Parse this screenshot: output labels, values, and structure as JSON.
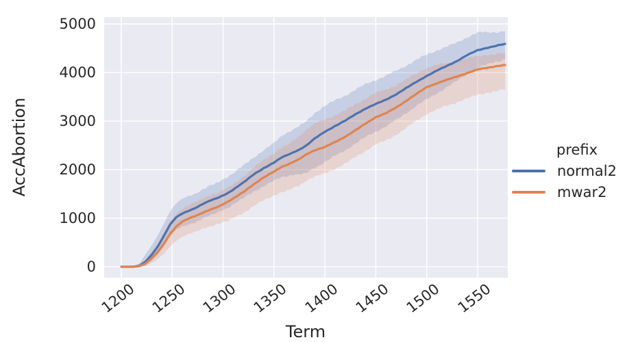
{
  "figure": {
    "background": "#ffffff",
    "text_color": "#262626"
  },
  "chart_data": {
    "type": "line",
    "title": "",
    "xlabel": "Term",
    "ylabel": "AccAbortion",
    "grid": true,
    "plot_bg": "#eaeaf2",
    "grid_color": "#ffffff",
    "xlim": [
      1183.2,
      1579.6
    ],
    "ylim": [
      -225,
      5141
    ],
    "x_ticks": [
      1200,
      1250,
      1300,
      1350,
      1400,
      1450,
      1500,
      1550
    ],
    "y_ticks": [
      0,
      1000,
      2000,
      3000,
      4000,
      5000
    ],
    "legend": {
      "title": "prefix",
      "position": "right-outside",
      "frame": false
    },
    "x": [
      1200,
      1206,
      1212,
      1218,
      1224,
      1230,
      1236,
      1242,
      1248,
      1254,
      1260,
      1266,
      1272,
      1280,
      1288,
      1296,
      1304,
      1312,
      1320,
      1330,
      1340,
      1350,
      1358,
      1366,
      1374,
      1382,
      1390,
      1400,
      1410,
      1420,
      1430,
      1440,
      1450,
      1460,
      1470,
      1480,
      1490,
      1500,
      1510,
      1520,
      1530,
      1540,
      1550,
      1560,
      1568,
      1577
    ],
    "series": [
      {
        "name": "normal2",
        "color": "#4c72b0",
        "band_opacity": 0.22,
        "mean": [
          0,
          0,
          2,
          25,
          110,
          250,
          420,
          640,
          870,
          1020,
          1100,
          1150,
          1200,
          1290,
          1370,
          1430,
          1510,
          1620,
          1740,
          1900,
          2030,
          2150,
          2260,
          2330,
          2400,
          2500,
          2640,
          2780,
          2900,
          3010,
          3140,
          3260,
          3350,
          3440,
          3550,
          3680,
          3810,
          3930,
          4040,
          4140,
          4240,
          4360,
          4460,
          4510,
          4550,
          4590
        ],
        "hi": [
          0,
          0,
          7,
          70,
          260,
          440,
          650,
          900,
          1150,
          1310,
          1395,
          1450,
          1500,
          1595,
          1680,
          1745,
          1830,
          1950,
          2080,
          2255,
          2405,
          2550,
          2690,
          2790,
          2890,
          3015,
          3165,
          3310,
          3425,
          3530,
          3650,
          3765,
          3850,
          3930,
          4030,
          4140,
          4260,
          4370,
          4460,
          4540,
          4620,
          4730,
          4820,
          4820,
          4830,
          4850
        ],
        "lo": [
          0,
          0,
          0,
          0,
          20,
          120,
          250,
          430,
          630,
          760,
          825,
          870,
          915,
          1000,
          1075,
          1130,
          1200,
          1300,
          1410,
          1555,
          1670,
          1770,
          1840,
          1870,
          1900,
          1940,
          2040,
          2160,
          2290,
          2405,
          2540,
          2670,
          2780,
          2890,
          3020,
          3170,
          3320,
          3450,
          3580,
          3700,
          3830,
          3970,
          4090,
          4170,
          4220,
          4270
        ]
      },
      {
        "name": "mwar2",
        "color": "#dd8452",
        "band_opacity": 0.22,
        "mean": [
          0,
          0,
          1,
          15,
          70,
          180,
          310,
          480,
          680,
          830,
          930,
          990,
          1040,
          1110,
          1180,
          1240,
          1330,
          1430,
          1540,
          1700,
          1840,
          1960,
          2060,
          2130,
          2210,
          2320,
          2400,
          2465,
          2570,
          2680,
          2810,
          2950,
          3080,
          3160,
          3280,
          3420,
          3560,
          3700,
          3780,
          3850,
          3920,
          3990,
          4060,
          4100,
          4130,
          4155
        ],
        "hi": [
          0,
          0,
          4,
          45,
          150,
          320,
          490,
          700,
          930,
          1090,
          1200,
          1265,
          1320,
          1395,
          1470,
          1535,
          1630,
          1740,
          1860,
          2040,
          2200,
          2345,
          2470,
          2565,
          2670,
          2820,
          2940,
          3030,
          3125,
          3225,
          3350,
          3470,
          3580,
          3640,
          3740,
          3860,
          3980,
          4100,
          4160,
          4200,
          4250,
          4290,
          4340,
          4360,
          4385,
          4405
        ],
        "lo": [
          0,
          0,
          0,
          0,
          20,
          80,
          160,
          270,
          420,
          540,
          620,
          670,
          710,
          770,
          830,
          880,
          950,
          1030,
          1120,
          1255,
          1370,
          1470,
          1550,
          1605,
          1675,
          1775,
          1855,
          1925,
          2025,
          2130,
          2255,
          2390,
          2515,
          2595,
          2720,
          2865,
          3010,
          3155,
          3240,
          3315,
          3390,
          3465,
          3540,
          3590,
          3625,
          3655
        ]
      }
    ]
  }
}
